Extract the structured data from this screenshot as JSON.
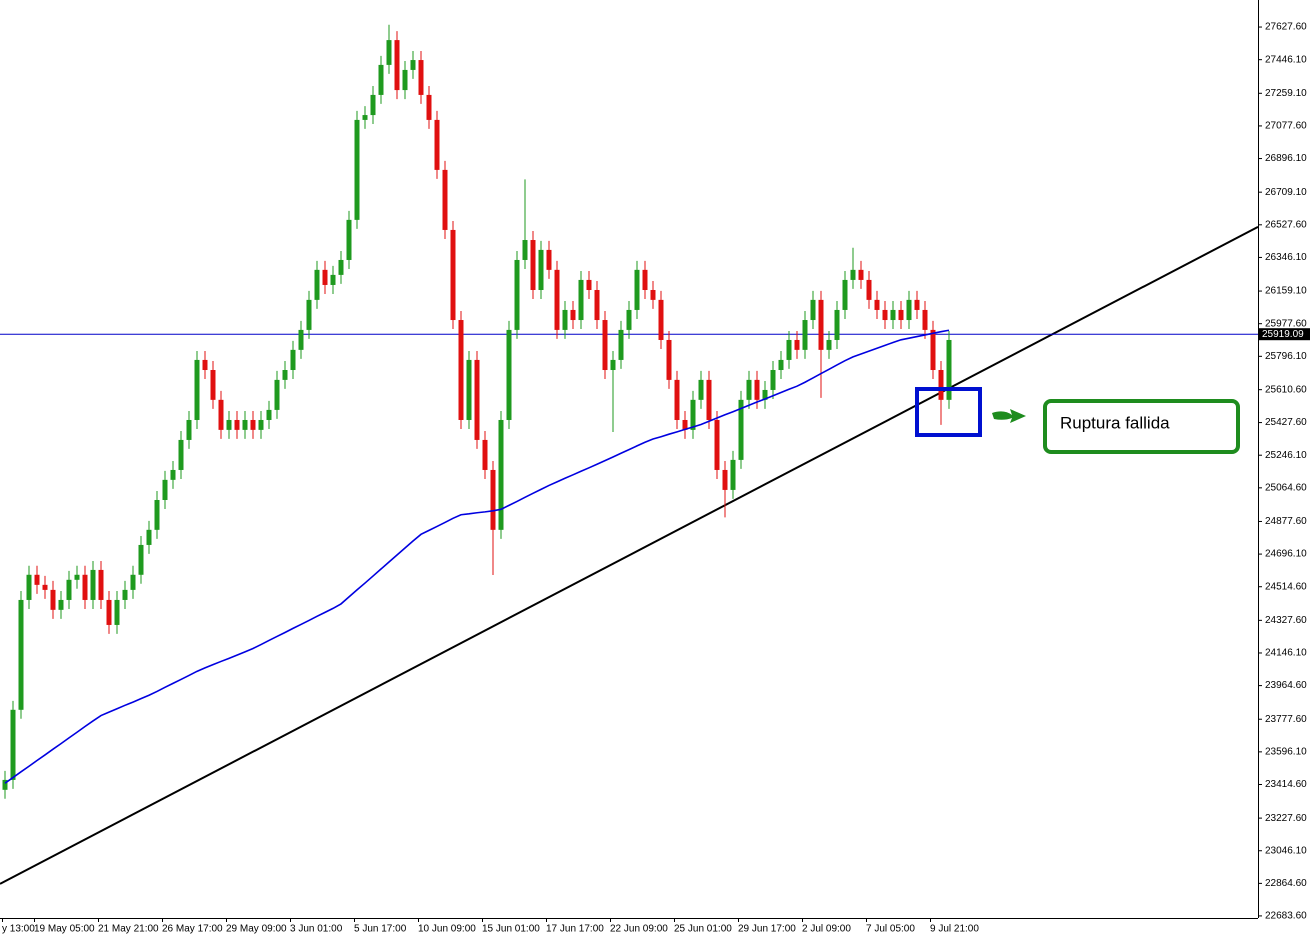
{
  "chart_data": {
    "type": "candlestick",
    "categories": [
      "y 13:00",
      null,
      null,
      null,
      "19 May 05:00",
      null,
      null,
      null,
      null,
      null,
      null,
      null,
      "21 May 21:00",
      null,
      null,
      null,
      null,
      null,
      null,
      null,
      "26 May 17:00",
      null,
      null,
      null,
      null,
      null,
      null,
      null,
      "29 May 09:00",
      null,
      null,
      null,
      null,
      null,
      null,
      null,
      "3 Jun 01:00",
      null,
      null,
      null,
      null,
      null,
      null,
      null,
      "5 Jun 17:00",
      null,
      null,
      null,
      null,
      null,
      null,
      null,
      "10 Jun 09:00",
      null,
      null,
      null,
      null,
      null,
      null,
      null,
      "15 Jun 01:00",
      null,
      null,
      null,
      null,
      null,
      null,
      null,
      "17 Jun 17:00",
      null,
      null,
      null,
      null,
      null,
      null,
      null,
      "22 Jun 09:00",
      null,
      null,
      null,
      null,
      null,
      null,
      null,
      "25 Jun 01:00",
      null,
      null,
      null,
      null,
      null,
      null,
      null,
      "29 Jun 17:00",
      null,
      null,
      null,
      null,
      null,
      null,
      null,
      "2 Jul 09:00",
      null,
      null,
      null,
      null,
      null,
      null,
      null,
      "7 Jul 05:00",
      null,
      null,
      null,
      null,
      null,
      null,
      null,
      "9 Jul 21:00",
      null,
      null
    ],
    "open": [
      23385,
      23440,
      23830,
      24441,
      24581,
      24525,
      24497,
      24386,
      24441,
      24553,
      24581,
      24441,
      24608,
      24441,
      24302,
      24441,
      24497,
      24581,
      24747,
      24831,
      24997,
      25109,
      25164,
      25331,
      25442,
      25776,
      25720,
      25554,
      25387,
      25442,
      25387,
      25442,
      25387,
      25442,
      25498,
      25665,
      25720,
      25832,
      25943,
      26110,
      26277,
      26193,
      26249,
      26332,
      26555,
      27111,
      27138,
      27250,
      27417,
      27555,
      27277,
      27389,
      27444,
      27250,
      27111,
      26833,
      26499,
      25998,
      25442,
      25776,
      25331,
      25164,
      24831,
      25442,
      25943,
      26332,
      26443,
      26165,
      26388,
      26277,
      25943,
      26054,
      25998,
      26221,
      26165,
      25998,
      25720,
      25776,
      25943,
      26054,
      26277,
      26165,
      26110,
      25887,
      25665,
      25442,
      25387,
      25554,
      25665,
      25442,
      25164,
      25053,
      25220,
      25554,
      25665,
      25554,
      25609,
      25720,
      25776,
      25887,
      25832,
      25998,
      26110,
      25832,
      25887,
      26054,
      26221,
      26277,
      26221,
      26110,
      26054,
      25998,
      26054,
      25998,
      26110,
      26054,
      25943,
      25720,
      25554
    ],
    "high": [
      23490,
      23880,
      24491,
      24631,
      24631,
      24575,
      24547,
      24491,
      24603,
      24631,
      24631,
      24658,
      24658,
      24491,
      24491,
      24547,
      24631,
      24797,
      24881,
      25047,
      25159,
      25214,
      25381,
      25492,
      25826,
      25826,
      25770,
      25604,
      25492,
      25492,
      25492,
      25492,
      25492,
      25548,
      25715,
      25770,
      25882,
      25993,
      26160,
      26327,
      26327,
      26299,
      26382,
      26605,
      27161,
      27188,
      27300,
      27467,
      27640,
      27605,
      27439,
      27494,
      27494,
      27300,
      27161,
      26883,
      26549,
      26048,
      25826,
      25826,
      25381,
      25214,
      25492,
      25993,
      26382,
      26780,
      26493,
      26438,
      26438,
      26327,
      26104,
      26104,
      26271,
      26271,
      26215,
      26048,
      25826,
      25993,
      26104,
      26327,
      26327,
      26215,
      26160,
      25937,
      25715,
      25492,
      25604,
      25715,
      25715,
      25492,
      25214,
      25270,
      25604,
      25715,
      25715,
      25659,
      25770,
      25826,
      25937,
      25937,
      26048,
      26160,
      26160,
      25937,
      26104,
      26271,
      26400,
      26327,
      26271,
      26160,
      26104,
      26104,
      26104,
      26160,
      26160,
      26104,
      25993,
      25770,
      25937
    ],
    "low": [
      23335,
      23390,
      23780,
      24391,
      24475,
      24447,
      24336,
      24336,
      24391,
      24503,
      24391,
      24391,
      24391,
      24252,
      24252,
      24391,
      24447,
      24531,
      24697,
      24781,
      24947,
      25059,
      25114,
      25281,
      25392,
      25670,
      25504,
      25337,
      25337,
      25337,
      25337,
      25337,
      25337,
      25392,
      25448,
      25615,
      25670,
      25782,
      25893,
      26060,
      26143,
      26143,
      26199,
      26282,
      26505,
      27061,
      27088,
      27200,
      27367,
      27227,
      27227,
      27339,
      27200,
      27061,
      26783,
      26449,
      25948,
      25392,
      25392,
      25281,
      25114,
      24580,
      24781,
      25392,
      25893,
      26282,
      26115,
      26115,
      26227,
      25893,
      25893,
      25948,
      25948,
      26115,
      25948,
      25670,
      25375,
      25726,
      25893,
      26004,
      26115,
      26060,
      25837,
      25615,
      25392,
      25337,
      25337,
      25504,
      25392,
      25114,
      24900,
      25003,
      25170,
      25504,
      25504,
      25504,
      25559,
      25670,
      25726,
      25782,
      25782,
      25948,
      25565,
      25782,
      25837,
      26004,
      26171,
      26171,
      26060,
      26004,
      25948,
      25948,
      25948,
      25948,
      26004,
      25893,
      25670,
      25415,
      25504
    ],
    "close": [
      23440,
      23830,
      24441,
      24581,
      24525,
      24497,
      24386,
      24441,
      24553,
      24581,
      24441,
      24608,
      24441,
      24302,
      24441,
      24497,
      24581,
      24747,
      24831,
      24997,
      25109,
      25164,
      25331,
      25442,
      25776,
      25720,
      25554,
      25387,
      25442,
      25387,
      25442,
      25387,
      25442,
      25498,
      25665,
      25720,
      25832,
      25943,
      26110,
      26277,
      26193,
      26249,
      26332,
      26555,
      27111,
      27138,
      27250,
      27417,
      27555,
      27277,
      27389,
      27444,
      27250,
      27111,
      26833,
      26499,
      25998,
      25442,
      25776,
      25331,
      25164,
      24831,
      25442,
      25943,
      26332,
      26443,
      26165,
      26388,
      26277,
      25943,
      26054,
      25998,
      26221,
      26165,
      25998,
      25720,
      25776,
      25943,
      26054,
      26277,
      26165,
      26110,
      25887,
      25665,
      25442,
      25387,
      25554,
      25665,
      25442,
      25164,
      25053,
      25220,
      25554,
      25665,
      25554,
      25609,
      25720,
      25776,
      25887,
      25832,
      25998,
      26110,
      25832,
      25887,
      26054,
      26221,
      26277,
      26221,
      26110,
      26054,
      25998,
      26054,
      25998,
      26110,
      26054,
      25943,
      25720,
      25554,
      25887
    ],
    "up_color": "#1f9a1f",
    "down_color": "#e01010",
    "moving_average": {
      "color": "#0000e0",
      "values": [
        23422,
        23453,
        23485,
        23516,
        23548,
        23579,
        23611,
        23642,
        23674,
        23705,
        23737,
        23768,
        23798,
        23817,
        23836,
        23855,
        23873,
        23892,
        23911,
        23932,
        23955,
        23977,
        23999,
        24021,
        24044,
        24063,
        24081,
        24099,
        24116,
        24134,
        24152,
        24171,
        24193,
        24216,
        24238,
        24260,
        24283,
        24305,
        24327,
        24350,
        24372,
        24394,
        24419,
        24458,
        24497,
        24535,
        24574,
        24613,
        24652,
        24691,
        24730,
        24769,
        24806,
        24828,
        24850,
        24872,
        24895,
        24915,
        24920,
        24926,
        24931,
        24937,
        24945,
        24967,
        24989,
        25012,
        25034,
        25056,
        25078,
        25098,
        25118,
        25137,
        25157,
        25176,
        25196,
        25216,
        25236,
        25257,
        25277,
        25298,
        25318,
        25336,
        25349,
        25363,
        25376,
        25390,
        25403,
        25417,
        25435,
        25453,
        25471,
        25488,
        25506,
        25524,
        25542,
        25559,
        25577,
        25595,
        25613,
        25630,
        25652,
        25676,
        25700,
        25724,
        25748,
        25772,
        25793,
        25809,
        25825,
        25841,
        25857,
        25873,
        25888,
        25897,
        25906,
        25915,
        25924,
        25933,
        25941
      ]
    },
    "trendline": {
      "color": "#000000",
      "values": [
        22862,
        26516
      ]
    },
    "price_line": {
      "value": 25919.09,
      "color": "#0000c8"
    },
    "annotation": "Ruptura fallida",
    "ylim": [
      22672,
      27778
    ],
    "yticks": [
      {
        "value": 27627.6,
        "label": "27627.60"
      },
      {
        "value": 27446.1,
        "label": "27446.10"
      },
      {
        "value": 27259.1,
        "label": "27259.10"
      },
      {
        "value": 27077.6,
        "label": "27077.60"
      },
      {
        "value": 26896.1,
        "label": "26896.10"
      },
      {
        "value": 26709.1,
        "label": "26709.10"
      },
      {
        "value": 26527.6,
        "label": "26527.60"
      },
      {
        "value": 26346.1,
        "label": "26346.10"
      },
      {
        "value": 26159.1,
        "label": "26159.10"
      },
      {
        "value": 25977.6,
        "label": "25977.60"
      },
      {
        "value": 25796.1,
        "label": "25796.10"
      },
      {
        "value": 25610.6,
        "label": "25610.60"
      },
      {
        "value": 25427.6,
        "label": "25427.60"
      },
      {
        "value": 25246.1,
        "label": "25246.10"
      },
      {
        "value": 25064.6,
        "label": "25064.60"
      },
      {
        "value": 24877.6,
        "label": "24877.60"
      },
      {
        "value": 24696.1,
        "label": "24696.10"
      },
      {
        "value": 24514.6,
        "label": "24514.60"
      },
      {
        "value": 24327.6,
        "label": "24327.60"
      },
      {
        "value": 24146.1,
        "label": "24146.10"
      },
      {
        "value": 23964.6,
        "label": "23964.60"
      },
      {
        "value": 23777.6,
        "label": "23777.60"
      },
      {
        "value": 23596.1,
        "label": "23596.10"
      },
      {
        "value": 23414.6,
        "label": "23414.60"
      },
      {
        "value": 23227.6,
        "label": "23227.60"
      },
      {
        "value": 23046.1,
        "label": "23046.10"
      },
      {
        "value": 22864.6,
        "label": "22864.60"
      },
      {
        "value": 22683.6,
        "label": "22683.60"
      }
    ]
  }
}
